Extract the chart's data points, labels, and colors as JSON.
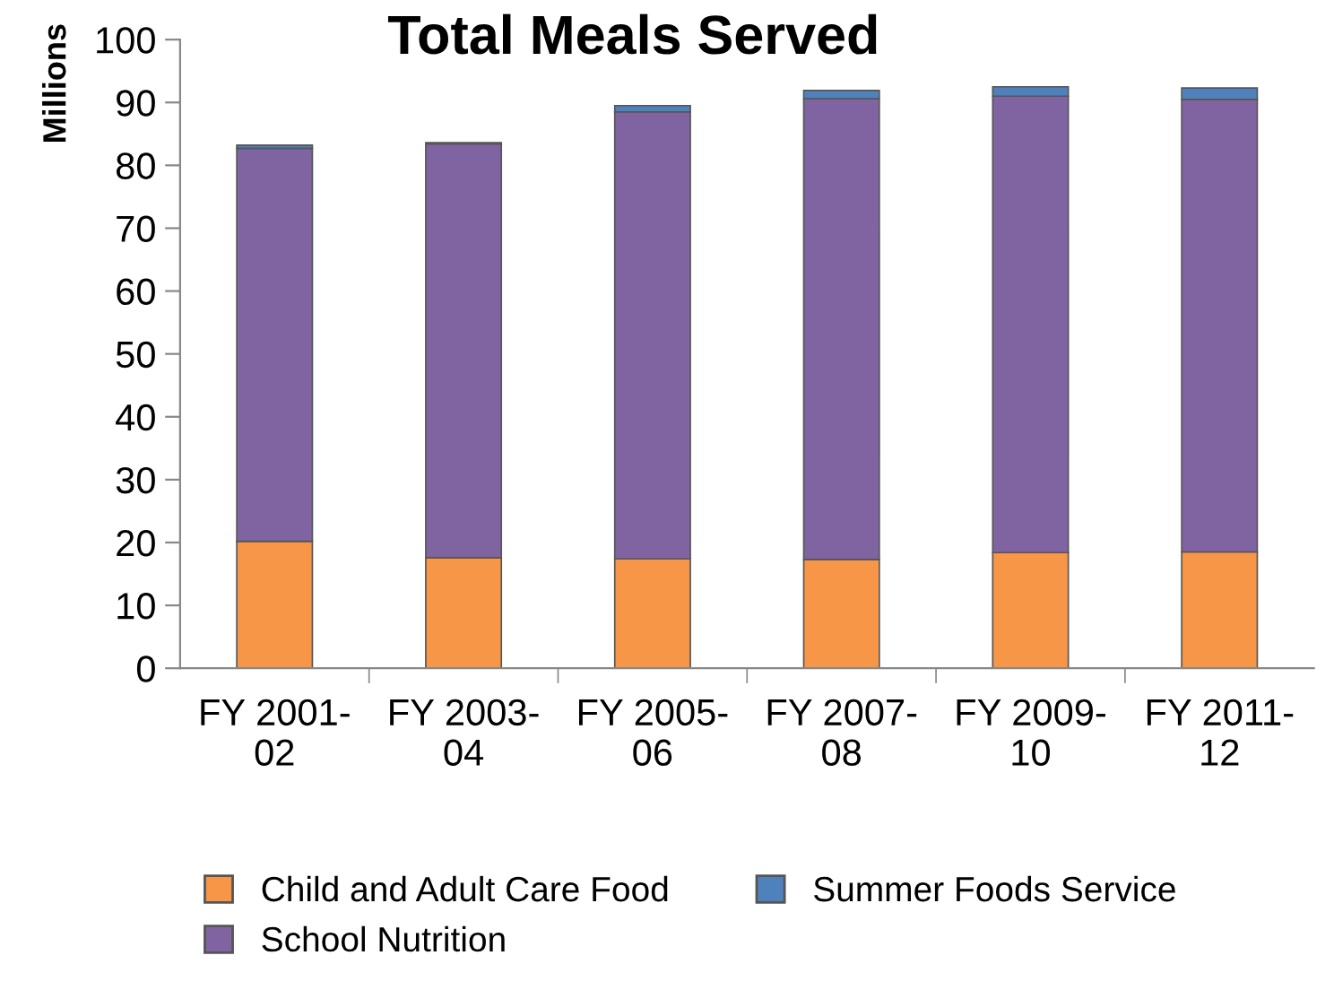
{
  "chart_data": {
    "type": "bar",
    "stacked": true,
    "title": "Total Meals Served",
    "ylabel": "Millions",
    "categories": [
      "FY 2001-\n02",
      "FY 2003-\n04",
      "FY 2005-\n06",
      "FY 2007-\n08",
      "FY 2009-\n10",
      "FY 2011-\n12"
    ],
    "series": [
      {
        "name": "Child and Adult Care Food",
        "color": "#f79646",
        "values": [
          20.2,
          17.6,
          17.4,
          17.3,
          18.4,
          18.5
        ]
      },
      {
        "name": "School Nutrition",
        "color": "#8064a2",
        "values": [
          62.5,
          65.8,
          71.1,
          73.3,
          72.6,
          72.0
        ]
      },
      {
        "name": "Summer Foods Service",
        "color": "#4f81bd",
        "values": [
          0.5,
          0.2,
          1.0,
          1.3,
          1.5,
          1.8
        ]
      }
    ],
    "ylim": [
      0,
      100
    ],
    "yticks": [
      0,
      10,
      20,
      30,
      40,
      50,
      60,
      70,
      80,
      90,
      100
    ],
    "grid": false,
    "legend": "bottom"
  }
}
